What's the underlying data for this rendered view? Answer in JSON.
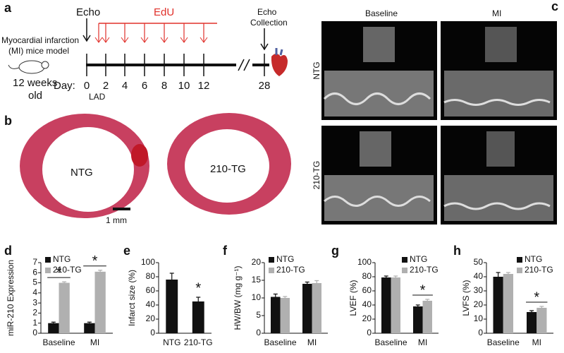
{
  "panel_a": {
    "label": "a",
    "echo": "Echo",
    "edu": "EdU",
    "model": [
      "Myocardial infarction",
      "(MI) mice model"
    ],
    "age": [
      "12 weeks",
      "old"
    ],
    "day_label": "Day:",
    "days": [
      0,
      2,
      4,
      6,
      8,
      10,
      12,
      28
    ],
    "lad": "LAD",
    "end": [
      "Echo",
      "Collection"
    ]
  },
  "panel_b": {
    "label": "b",
    "sections": [
      "NTG",
      "210-TG"
    ],
    "scale": "1 mm"
  },
  "panel_c": {
    "label": "c",
    "columns": [
      "Baseline",
      "MI"
    ],
    "rows": [
      "NTG",
      "210-TG"
    ]
  },
  "chart_data": [
    {
      "type": "bar",
      "label": "d",
      "y_label": "miR-210 Expression",
      "categories": [
        "Baseline",
        "MI"
      ],
      "series": [
        {
          "name": "NTG",
          "color": "#111111",
          "values": [
            1,
            1
          ],
          "errors": [
            0.1,
            0.1
          ]
        },
        {
          "name": "210-TG",
          "color": "#b0b0b0",
          "values": [
            5,
            6.1
          ],
          "errors": [
            0.1,
            0.15
          ]
        }
      ],
      "ylim": [
        0,
        7
      ],
      "yticks": [
        0,
        1,
        2,
        3,
        4,
        5,
        6,
        7
      ],
      "legend": "upper left",
      "annotations": [
        {
          "text": "*",
          "category": "Baseline"
        },
        {
          "text": "*",
          "category": "MI"
        }
      ]
    },
    {
      "type": "bar",
      "label": "e",
      "y_label": "Infarct size (%)",
      "categories": [
        "NTG",
        "210-TG"
      ],
      "values": [
        76,
        45
      ],
      "errors": [
        9,
        6
      ],
      "color": "#111111",
      "ylim": [
        0,
        100
      ],
      "yticks": [
        0,
        20,
        40,
        60,
        80,
        100
      ],
      "annotations": [
        {
          "text": "*",
          "category": "210-TG"
        }
      ]
    },
    {
      "type": "bar",
      "label": "f",
      "y_label": "HW/BW (mg g⁻¹)",
      "categories": [
        "Baseline",
        "MI"
      ],
      "series": [
        {
          "name": "NTG",
          "color": "#111111",
          "values": [
            10.3,
            14
          ],
          "errors": [
            0.8,
            0.5
          ]
        },
        {
          "name": "210-TG",
          "color": "#b0b0b0",
          "values": [
            10,
            14.2
          ],
          "errors": [
            0.4,
            0.7
          ]
        }
      ],
      "ylim": [
        0,
        20
      ],
      "yticks": [
        0,
        5,
        10,
        15,
        20
      ],
      "legend": "upper left"
    },
    {
      "type": "bar",
      "label": "g",
      "y_label": "LVEF (%)",
      "categories": [
        "Baseline",
        "MI"
      ],
      "series": [
        {
          "name": "NTG",
          "color": "#111111",
          "values": [
            79,
            38
          ],
          "errors": [
            2,
            2
          ]
        },
        {
          "name": "210-TG",
          "color": "#b0b0b0",
          "values": [
            79,
            46
          ],
          "errors": [
            2,
            2
          ]
        }
      ],
      "ylim": [
        0,
        100
      ],
      "yticks": [
        0,
        20,
        40,
        60,
        80,
        100
      ],
      "legend": "upper right",
      "annotations": [
        {
          "text": "*",
          "category": "MI"
        }
      ]
    },
    {
      "type": "bar",
      "label": "h",
      "y_label": "LVFS (%)",
      "categories": [
        "Baseline",
        "MI"
      ],
      "series": [
        {
          "name": "NTG",
          "color": "#111111",
          "values": [
            40,
            15
          ],
          "errors": [
            3,
            1
          ]
        },
        {
          "name": "210-TG",
          "color": "#b0b0b0",
          "values": [
            42,
            18
          ],
          "errors": [
            1,
            1
          ]
        }
      ],
      "ylim": [
        0,
        50
      ],
      "yticks": [
        0,
        10,
        20,
        30,
        40,
        50
      ],
      "legend": "upper right",
      "annotations": [
        {
          "text": "*",
          "category": "MI"
        }
      ]
    }
  ]
}
